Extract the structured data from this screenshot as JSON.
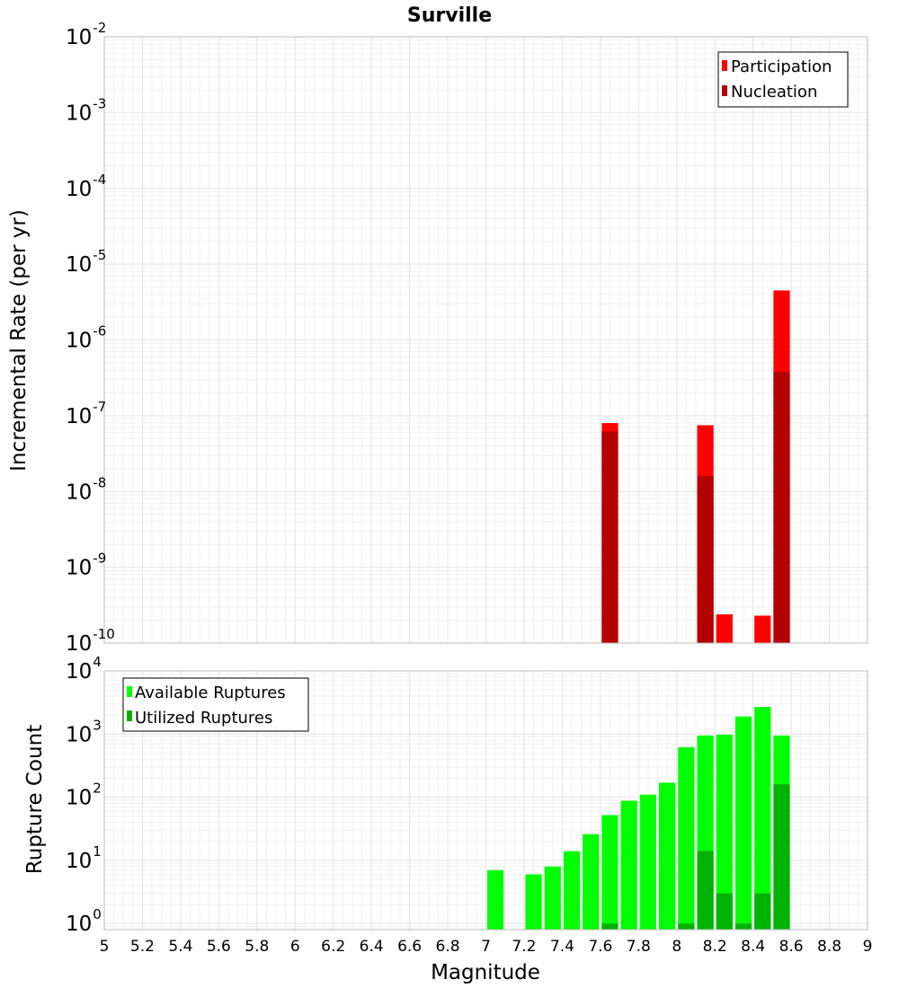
{
  "chart_data": [
    {
      "type": "bar",
      "title": "Surville",
      "xlabel": "",
      "ylabel": "Incremental Rate (per yr)",
      "yscale": "log",
      "ylim": [
        1e-10,
        0.01
      ],
      "xlim": [
        5,
        9
      ],
      "grid": true,
      "legend_position": "top-right",
      "bin_width": 0.1,
      "yticks": [
        {
          "base": "10",
          "exp": "-10"
        },
        {
          "base": "10",
          "exp": "-9"
        },
        {
          "base": "10",
          "exp": "-8"
        },
        {
          "base": "10",
          "exp": "-7"
        },
        {
          "base": "10",
          "exp": "-6"
        },
        {
          "base": "10",
          "exp": "-5"
        },
        {
          "base": "10",
          "exp": "-4"
        },
        {
          "base": "10",
          "exp": "-3"
        },
        {
          "base": "10",
          "exp": "-2"
        }
      ],
      "series": [
        {
          "name": "Participation",
          "color": "#ff0000",
          "x": [
            7.65,
            8.15,
            8.25,
            8.45,
            8.55
          ],
          "values": [
            8e-08,
            7.5e-08,
            2.4e-10,
            2.3e-10,
            4.5e-06
          ]
        },
        {
          "name": "Nucleation",
          "color": "#b30000",
          "x": [
            7.65,
            8.15,
            8.55
          ],
          "values": [
            6.2e-08,
            1.6e-08,
            3.8e-07
          ]
        }
      ]
    },
    {
      "type": "bar",
      "title": "",
      "xlabel": "Magnitude",
      "ylabel": "Rupture Count",
      "yscale": "log",
      "ylim": [
        0.8,
        10000
      ],
      "xlim": [
        5,
        9
      ],
      "grid": true,
      "legend_position": "top-left",
      "bin_width": 0.1,
      "xticks": [
        "5",
        "5.2",
        "5.4",
        "5.6",
        "5.8",
        "6",
        "6.2",
        "6.4",
        "6.6",
        "6.8",
        "7",
        "7.2",
        "7.4",
        "7.6",
        "7.8",
        "8",
        "8.2",
        "8.4",
        "8.6",
        "8.8",
        "9"
      ],
      "yticks": [
        {
          "base": "10",
          "exp": "0"
        },
        {
          "base": "10",
          "exp": "1"
        },
        {
          "base": "10",
          "exp": "2"
        },
        {
          "base": "10",
          "exp": "3"
        },
        {
          "base": "10",
          "exp": "4"
        }
      ],
      "series": [
        {
          "name": "Available Ruptures",
          "color": "#00ff00",
          "x": [
            7.05,
            7.25,
            7.35,
            7.45,
            7.55,
            7.65,
            7.75,
            7.85,
            7.95,
            8.05,
            8.15,
            8.25,
            8.35,
            8.45,
            8.55
          ],
          "values": [
            7,
            6,
            8,
            14,
            26,
            52,
            88,
            110,
            170,
            620,
            950,
            980,
            1900,
            2700,
            950
          ]
        },
        {
          "name": "Utilized Ruptures",
          "color": "#00b300",
          "x": [
            7.65,
            8.05,
            8.15,
            8.25,
            8.35,
            8.45,
            8.55
          ],
          "values": [
            1,
            1,
            14,
            3,
            1,
            3,
            160
          ]
        }
      ]
    }
  ]
}
